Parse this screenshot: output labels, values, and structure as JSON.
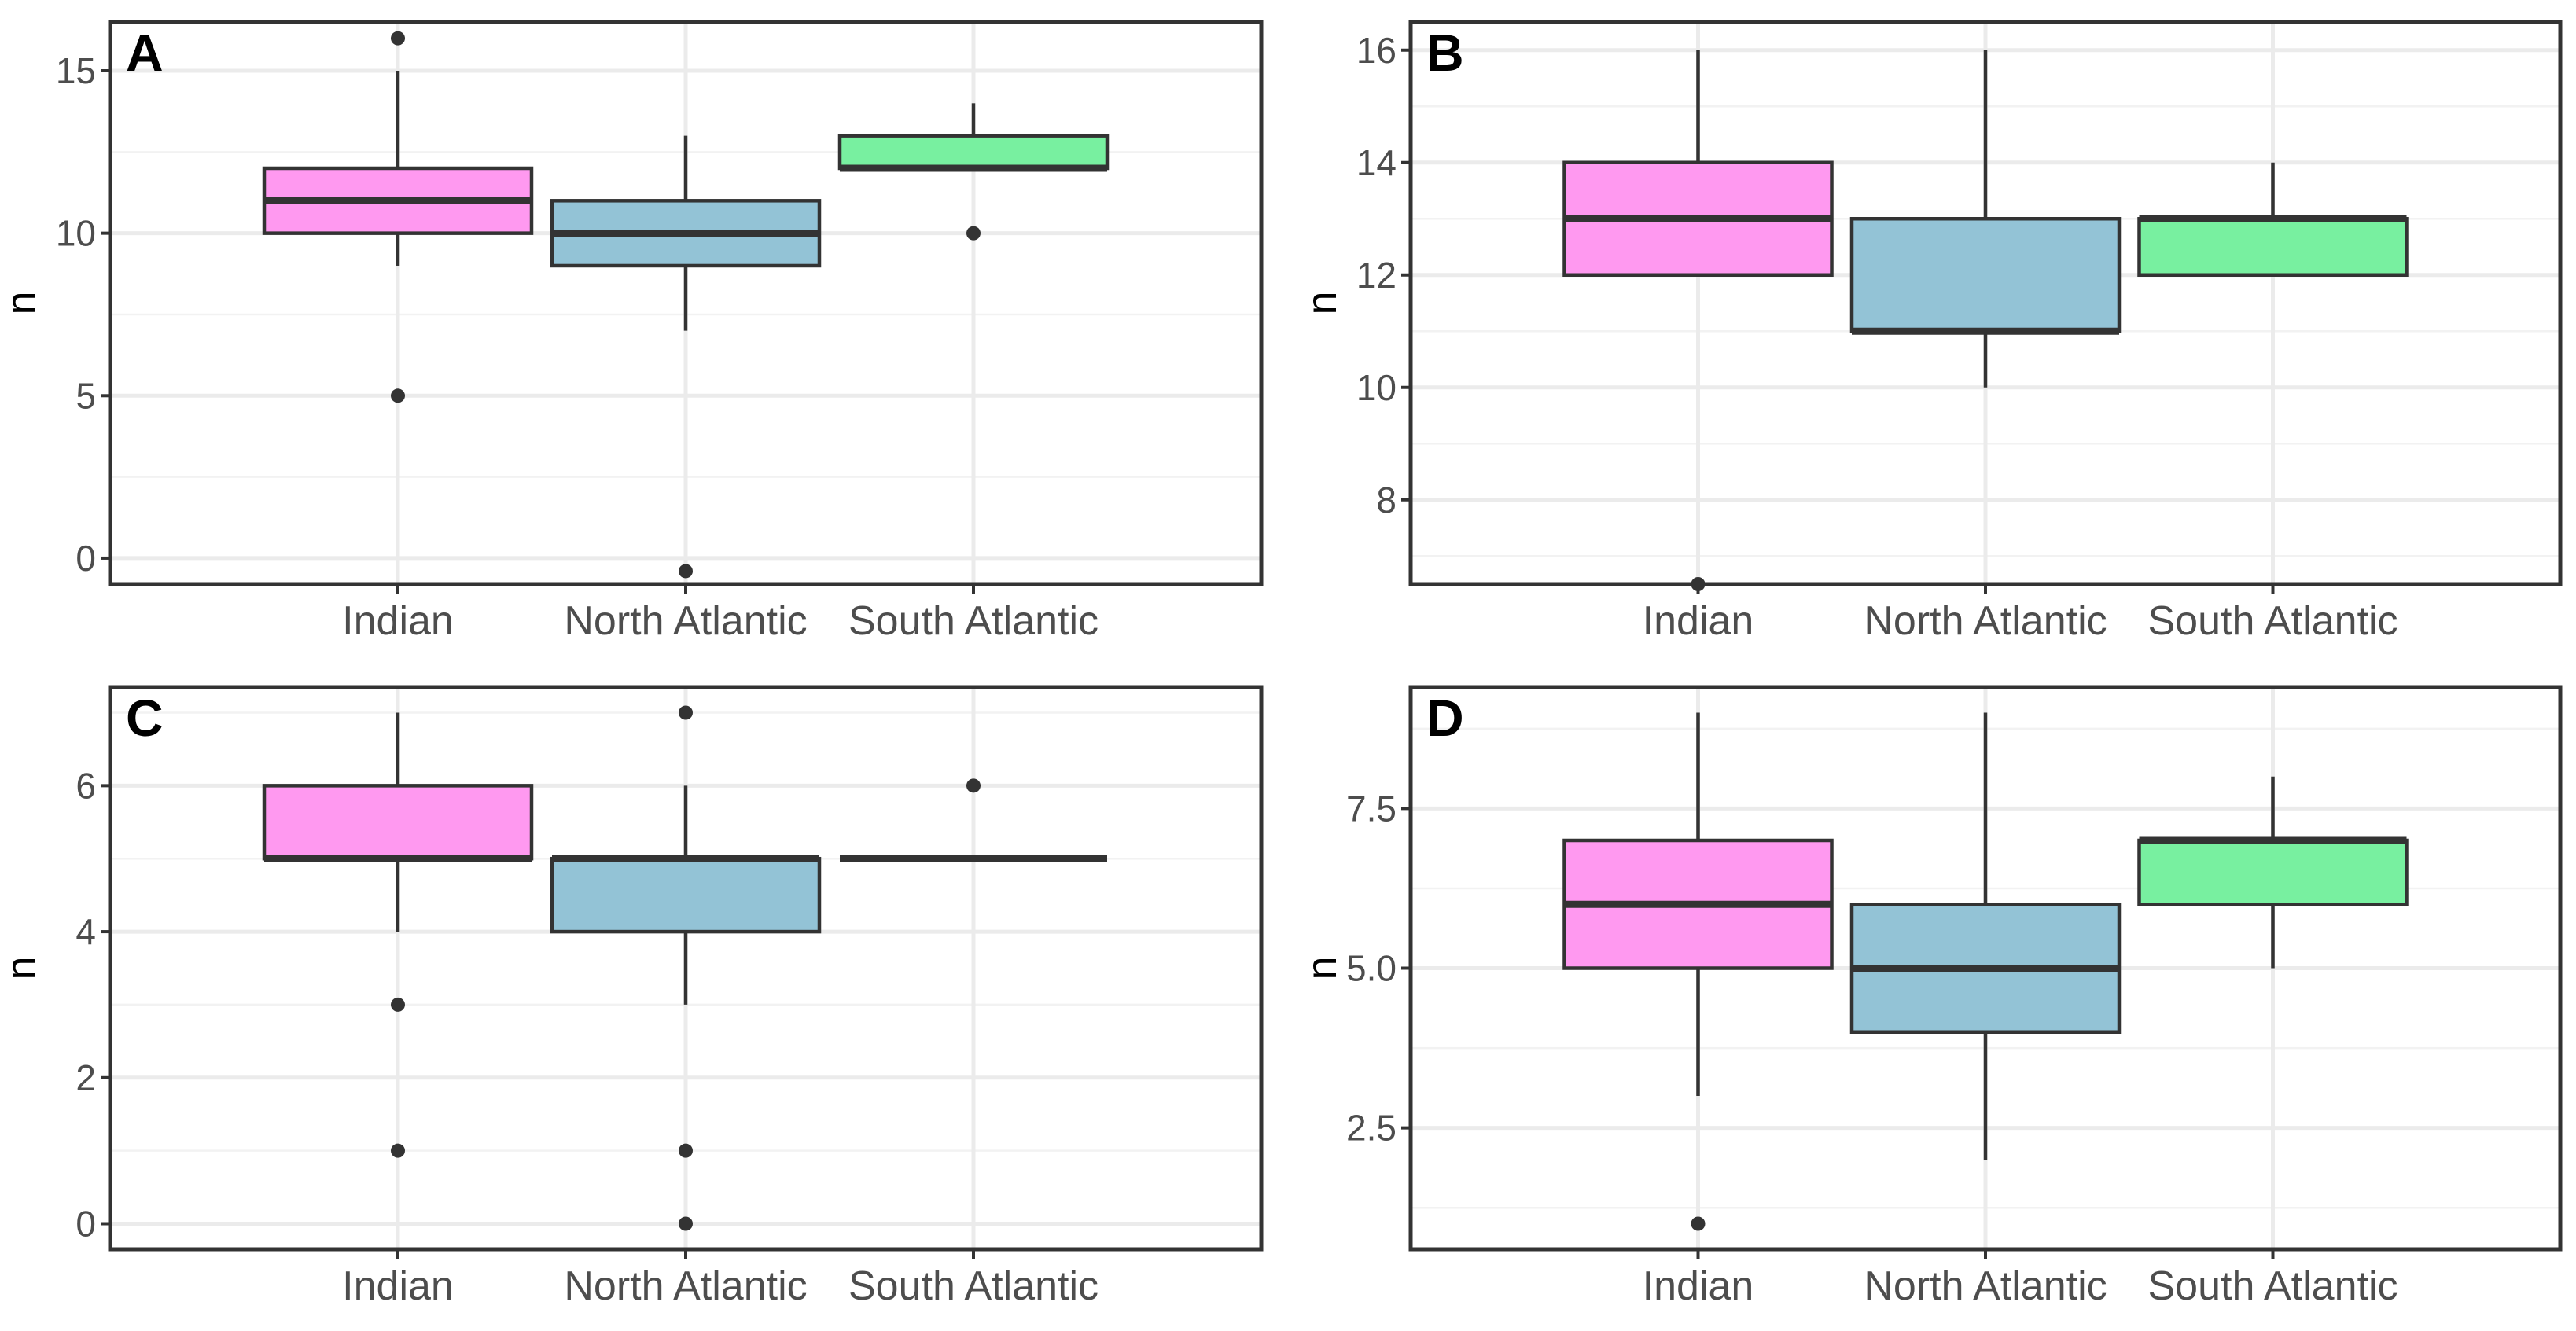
{
  "colors": {
    "Indian": "#ff99f0",
    "North Atlantic": "#93c3d6",
    "South Atlantic": "#78f0a0"
  },
  "chart_data": [
    {
      "panel": "A",
      "type": "box",
      "ylabel": "n",
      "categories": [
        "Indian",
        "North Atlantic",
        "South Atlantic"
      ],
      "ylim": [
        -0.8,
        16.5
      ],
      "yticks": [
        0,
        5,
        10,
        15
      ],
      "ytick_labels": [
        "0",
        "5",
        "10",
        "15"
      ],
      "boxes": [
        {
          "category": "Indian",
          "whisker_low": 9,
          "q1": 10,
          "median": 11,
          "q3": 12,
          "whisker_high": 15,
          "outliers": [
            16,
            5
          ]
        },
        {
          "category": "North Atlantic",
          "whisker_low": 7,
          "q1": 9,
          "median": 10,
          "q3": 11,
          "whisker_high": 13,
          "outliers": [
            -0.4
          ]
        },
        {
          "category": "South Atlantic",
          "whisker_low": 12,
          "q1": 12,
          "median": 12,
          "q3": 13,
          "whisker_high": 14,
          "outliers": [
            10
          ]
        }
      ]
    },
    {
      "panel": "B",
      "type": "box",
      "ylabel": "n",
      "categories": [
        "Indian",
        "North Atlantic",
        "South Atlantic"
      ],
      "ylim": [
        6.5,
        16.5
      ],
      "yticks": [
        8,
        10,
        12,
        14,
        16
      ],
      "ytick_labels": [
        "8",
        "10",
        "12",
        "14",
        "16"
      ],
      "boxes": [
        {
          "category": "Indian",
          "whisker_low": 12,
          "q1": 12,
          "median": 13,
          "q3": 14,
          "whisker_high": 16,
          "outliers": [
            6.5
          ]
        },
        {
          "category": "North Atlantic",
          "whisker_low": 10,
          "q1": 11,
          "median": 11,
          "q3": 13,
          "whisker_high": 16,
          "outliers": []
        },
        {
          "category": "South Atlantic",
          "whisker_low": 12,
          "q1": 12,
          "median": 13,
          "q3": 13,
          "whisker_high": 14,
          "outliers": []
        }
      ]
    },
    {
      "panel": "C",
      "type": "box",
      "ylabel": "n",
      "categories": [
        "Indian",
        "North Atlantic",
        "South Atlantic"
      ],
      "ylim": [
        -0.35,
        7.35
      ],
      "yticks": [
        0,
        2,
        4,
        6
      ],
      "ytick_labels": [
        "0",
        "2",
        "4",
        "6"
      ],
      "boxes": [
        {
          "category": "Indian",
          "whisker_low": 4,
          "q1": 5,
          "median": 5,
          "q3": 6,
          "whisker_high": 7,
          "outliers": [
            3,
            1
          ]
        },
        {
          "category": "North Atlantic",
          "whisker_low": 3,
          "q1": 4,
          "median": 5,
          "q3": 5,
          "whisker_high": 6,
          "outliers": [
            7,
            1,
            0
          ]
        },
        {
          "category": "South Atlantic",
          "whisker_low": 5,
          "q1": 5,
          "median": 5,
          "q3": 5,
          "whisker_high": 5,
          "outliers": [
            6
          ]
        }
      ]
    },
    {
      "panel": "D",
      "type": "box",
      "ylabel": "n",
      "categories": [
        "Indian",
        "North Atlantic",
        "South Atlantic"
      ],
      "ylim": [
        0.6,
        9.4
      ],
      "yticks": [
        2.5,
        5.0,
        7.5
      ],
      "ytick_labels": [
        "2.5",
        "5.0",
        "7.5"
      ],
      "boxes": [
        {
          "category": "Indian",
          "whisker_low": 3,
          "q1": 5,
          "median": 6,
          "q3": 7,
          "whisker_high": 9,
          "outliers": [
            1
          ]
        },
        {
          "category": "North Atlantic",
          "whisker_low": 2,
          "q1": 4,
          "median": 5,
          "q3": 6,
          "whisker_high": 9,
          "outliers": []
        },
        {
          "category": "South Atlantic",
          "whisker_low": 5,
          "q1": 6,
          "median": 7,
          "q3": 7,
          "whisker_high": 8,
          "outliers": []
        }
      ]
    }
  ]
}
